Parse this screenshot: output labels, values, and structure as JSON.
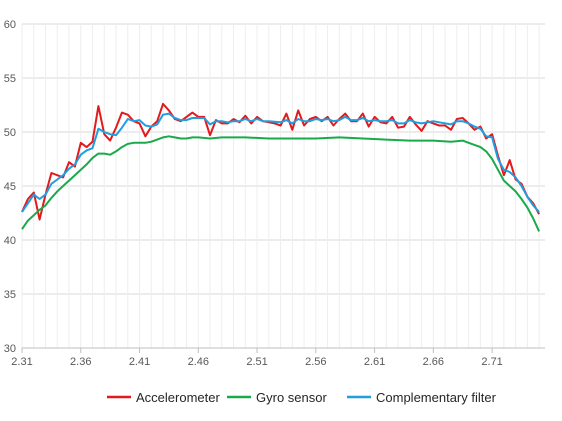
{
  "chart_data": {
    "type": "line",
    "title": "",
    "xlabel": "",
    "ylabel": "",
    "xlim": [
      2.31,
      2.755
    ],
    "ylim": [
      30,
      60
    ],
    "x_ticks": [
      "2.31",
      "2.36",
      "2.41",
      "2.46",
      "2.51",
      "2.56",
      "2.61",
      "2.66",
      "2.71"
    ],
    "y_ticks": [
      "30",
      "35",
      "40",
      "45",
      "50",
      "55",
      "60"
    ],
    "grid": true,
    "legend_position": "bottom",
    "series": [
      {
        "name": "Accelerometer",
        "color": "#e31a1c",
        "points": [
          [
            2.31,
            42.6
          ],
          [
            2.315,
            43.8
          ],
          [
            2.32,
            44.4
          ],
          [
            2.325,
            41.9
          ],
          [
            2.33,
            44.2
          ],
          [
            2.335,
            46.2
          ],
          [
            2.34,
            46.0
          ],
          [
            2.345,
            45.8
          ],
          [
            2.35,
            47.2
          ],
          [
            2.355,
            46.8
          ],
          [
            2.36,
            49.0
          ],
          [
            2.365,
            48.6
          ],
          [
            2.37,
            49.1
          ],
          [
            2.375,
            52.4
          ],
          [
            2.38,
            49.8
          ],
          [
            2.385,
            49.2
          ],
          [
            2.39,
            50.4
          ],
          [
            2.395,
            51.8
          ],
          [
            2.4,
            51.6
          ],
          [
            2.405,
            51.0
          ],
          [
            2.41,
            50.8
          ],
          [
            2.415,
            49.6
          ],
          [
            2.42,
            50.5
          ],
          [
            2.425,
            51.0
          ],
          [
            2.43,
            52.6
          ],
          [
            2.435,
            52.0
          ],
          [
            2.44,
            51.2
          ],
          [
            2.445,
            51.0
          ],
          [
            2.45,
            51.4
          ],
          [
            2.455,
            51.8
          ],
          [
            2.46,
            51.4
          ],
          [
            2.465,
            51.4
          ],
          [
            2.47,
            49.7
          ],
          [
            2.475,
            51.1
          ],
          [
            2.48,
            50.8
          ],
          [
            2.485,
            50.8
          ],
          [
            2.49,
            51.2
          ],
          [
            2.495,
            50.9
          ],
          [
            2.5,
            51.5
          ],
          [
            2.505,
            50.8
          ],
          [
            2.51,
            51.4
          ],
          [
            2.515,
            51.0
          ],
          [
            2.52,
            50.9
          ],
          [
            2.525,
            50.8
          ],
          [
            2.53,
            50.6
          ],
          [
            2.535,
            51.7
          ],
          [
            2.54,
            50.2
          ],
          [
            2.545,
            52.0
          ],
          [
            2.55,
            50.6
          ],
          [
            2.555,
            51.2
          ],
          [
            2.56,
            51.4
          ],
          [
            2.565,
            51.0
          ],
          [
            2.57,
            51.4
          ],
          [
            2.575,
            50.6
          ],
          [
            2.58,
            51.2
          ],
          [
            2.585,
            51.7
          ],
          [
            2.59,
            51.0
          ],
          [
            2.595,
            51.0
          ],
          [
            2.6,
            51.7
          ],
          [
            2.605,
            50.5
          ],
          [
            2.61,
            51.4
          ],
          [
            2.615,
            50.9
          ],
          [
            2.62,
            50.8
          ],
          [
            2.625,
            51.4
          ],
          [
            2.63,
            50.4
          ],
          [
            2.635,
            50.5
          ],
          [
            2.64,
            51.4
          ],
          [
            2.645,
            50.7
          ],
          [
            2.65,
            50.1
          ],
          [
            2.655,
            51.0
          ],
          [
            2.66,
            50.8
          ],
          [
            2.665,
            50.6
          ],
          [
            2.67,
            50.6
          ],
          [
            2.675,
            50.2
          ],
          [
            2.68,
            51.2
          ],
          [
            2.685,
            51.3
          ],
          [
            2.69,
            50.8
          ],
          [
            2.695,
            50.2
          ],
          [
            2.7,
            50.5
          ],
          [
            2.705,
            49.4
          ],
          [
            2.71,
            49.8
          ],
          [
            2.715,
            47.8
          ],
          [
            2.72,
            46.0
          ],
          [
            2.725,
            47.4
          ],
          [
            2.73,
            45.6
          ],
          [
            2.735,
            45.2
          ],
          [
            2.74,
            44.0
          ],
          [
            2.745,
            43.4
          ],
          [
            2.75,
            42.4
          ]
        ]
      },
      {
        "name": "Gyro sensor",
        "color": "#1aaa4b",
        "points": [
          [
            2.31,
            41.0
          ],
          [
            2.315,
            41.8
          ],
          [
            2.32,
            42.3
          ],
          [
            2.325,
            42.8
          ],
          [
            2.33,
            43.2
          ],
          [
            2.335,
            43.9
          ],
          [
            2.34,
            44.5
          ],
          [
            2.345,
            45.0
          ],
          [
            2.35,
            45.5
          ],
          [
            2.355,
            46.0
          ],
          [
            2.36,
            46.5
          ],
          [
            2.365,
            47.0
          ],
          [
            2.37,
            47.6
          ],
          [
            2.375,
            48.0
          ],
          [
            2.38,
            48.0
          ],
          [
            2.385,
            47.9
          ],
          [
            2.39,
            48.2
          ],
          [
            2.395,
            48.6
          ],
          [
            2.4,
            48.9
          ],
          [
            2.405,
            49.0
          ],
          [
            2.41,
            49.0
          ],
          [
            2.415,
            49.0
          ],
          [
            2.42,
            49.1
          ],
          [
            2.425,
            49.3
          ],
          [
            2.43,
            49.5
          ],
          [
            2.435,
            49.6
          ],
          [
            2.44,
            49.5
          ],
          [
            2.445,
            49.4
          ],
          [
            2.45,
            49.4
          ],
          [
            2.455,
            49.5
          ],
          [
            2.46,
            49.5
          ],
          [
            2.47,
            49.4
          ],
          [
            2.48,
            49.5
          ],
          [
            2.5,
            49.5
          ],
          [
            2.52,
            49.4
          ],
          [
            2.54,
            49.4
          ],
          [
            2.56,
            49.4
          ],
          [
            2.58,
            49.5
          ],
          [
            2.6,
            49.4
          ],
          [
            2.62,
            49.3
          ],
          [
            2.64,
            49.2
          ],
          [
            2.66,
            49.2
          ],
          [
            2.675,
            49.1
          ],
          [
            2.685,
            49.2
          ],
          [
            2.69,
            49.0
          ],
          [
            2.7,
            48.6
          ],
          [
            2.705,
            48.2
          ],
          [
            2.71,
            47.5
          ],
          [
            2.715,
            46.5
          ],
          [
            2.72,
            45.5
          ],
          [
            2.725,
            45.0
          ],
          [
            2.73,
            44.5
          ],
          [
            2.735,
            43.8
          ],
          [
            2.74,
            43.0
          ],
          [
            2.745,
            42.0
          ],
          [
            2.75,
            40.8
          ]
        ]
      },
      {
        "name": "Complementary filter",
        "color": "#1f9ee0",
        "points": [
          [
            2.31,
            42.6
          ],
          [
            2.315,
            43.4
          ],
          [
            2.32,
            44.2
          ],
          [
            2.325,
            43.8
          ],
          [
            2.33,
            44.2
          ],
          [
            2.335,
            45.2
          ],
          [
            2.34,
            45.6
          ],
          [
            2.345,
            46.0
          ],
          [
            2.35,
            46.6
          ],
          [
            2.355,
            47.0
          ],
          [
            2.36,
            47.9
          ],
          [
            2.365,
            48.3
          ],
          [
            2.37,
            48.5
          ],
          [
            2.375,
            50.3
          ],
          [
            2.38,
            50.0
          ],
          [
            2.385,
            49.8
          ],
          [
            2.39,
            49.7
          ],
          [
            2.395,
            50.4
          ],
          [
            2.4,
            51.2
          ],
          [
            2.405,
            51.0
          ],
          [
            2.41,
            51.1
          ],
          [
            2.415,
            50.6
          ],
          [
            2.42,
            50.5
          ],
          [
            2.425,
            50.7
          ],
          [
            2.43,
            51.6
          ],
          [
            2.435,
            51.7
          ],
          [
            2.44,
            51.3
          ],
          [
            2.445,
            51.1
          ],
          [
            2.45,
            51.1
          ],
          [
            2.455,
            51.3
          ],
          [
            2.46,
            51.3
          ],
          [
            2.465,
            51.3
          ],
          [
            2.47,
            50.7
          ],
          [
            2.475,
            51.0
          ],
          [
            2.48,
            51.0
          ],
          [
            2.485,
            50.9
          ],
          [
            2.49,
            51.0
          ],
          [
            2.495,
            51.0
          ],
          [
            2.5,
            51.2
          ],
          [
            2.505,
            51.0
          ],
          [
            2.51,
            51.2
          ],
          [
            2.515,
            51.0
          ],
          [
            2.52,
            51.0
          ],
          [
            2.53,
            50.9
          ],
          [
            2.535,
            51.1
          ],
          [
            2.54,
            50.8
          ],
          [
            2.545,
            51.2
          ],
          [
            2.55,
            51.0
          ],
          [
            2.555,
            51.0
          ],
          [
            2.56,
            51.2
          ],
          [
            2.565,
            51.1
          ],
          [
            2.57,
            51.2
          ],
          [
            2.575,
            51.0
          ],
          [
            2.58,
            51.1
          ],
          [
            2.585,
            51.4
          ],
          [
            2.59,
            51.1
          ],
          [
            2.595,
            51.1
          ],
          [
            2.6,
            51.3
          ],
          [
            2.605,
            51.0
          ],
          [
            2.61,
            51.1
          ],
          [
            2.615,
            51.0
          ],
          [
            2.62,
            51.0
          ],
          [
            2.625,
            51.1
          ],
          [
            2.63,
            50.8
          ],
          [
            2.635,
            50.8
          ],
          [
            2.64,
            51.1
          ],
          [
            2.645,
            50.9
          ],
          [
            2.65,
            50.8
          ],
          [
            2.655,
            50.9
          ],
          [
            2.66,
            51.0
          ],
          [
            2.665,
            50.9
          ],
          [
            2.67,
            50.8
          ],
          [
            2.675,
            50.7
          ],
          [
            2.68,
            51.0
          ],
          [
            2.685,
            51.0
          ],
          [
            2.69,
            50.8
          ],
          [
            2.695,
            50.5
          ],
          [
            2.7,
            50.3
          ],
          [
            2.705,
            49.6
          ],
          [
            2.71,
            49.5
          ],
          [
            2.715,
            47.5
          ],
          [
            2.72,
            46.5
          ],
          [
            2.725,
            46.3
          ],
          [
            2.73,
            45.8
          ],
          [
            2.735,
            45.0
          ],
          [
            2.74,
            44.0
          ],
          [
            2.745,
            43.2
          ],
          [
            2.75,
            42.6
          ]
        ]
      }
    ]
  }
}
